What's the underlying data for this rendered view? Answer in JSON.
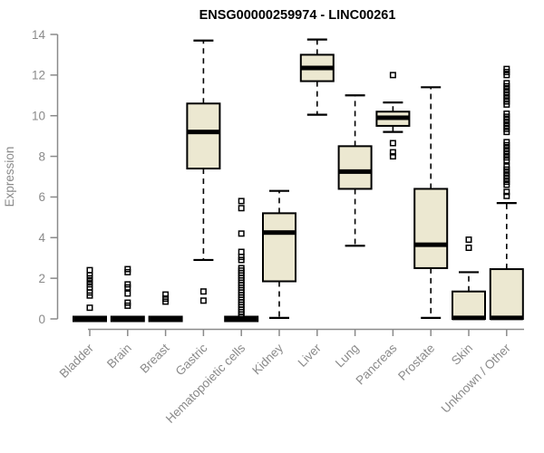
{
  "chart_data": {
    "type": "boxplot",
    "title": "ENSG00000259974 - LINC00261",
    "ylabel": "Expression",
    "xlabel": "",
    "ylim": [
      0,
      14
    ],
    "yticks": [
      0,
      2,
      4,
      6,
      8,
      10,
      12,
      14
    ],
    "grid": false,
    "legend": "none",
    "categories": [
      "Bladder",
      "Brain",
      "Breast",
      "Gastric",
      "Hematopoietic cells",
      "Kidney",
      "Liver",
      "Lung",
      "Pancreas",
      "Prostate",
      "Skin",
      "Unknown / Other"
    ],
    "series": [
      {
        "name": "Bladder",
        "whisker_low": 0,
        "q1": 0,
        "median": 0,
        "q3": 0,
        "whisker_high": 0,
        "outliers": [
          0.55,
          1.15,
          1.3,
          1.55,
          1.7,
          1.85,
          2.0,
          2.15,
          2.4
        ]
      },
      {
        "name": "Brain",
        "whisker_low": 0,
        "q1": 0,
        "median": 0,
        "q3": 0,
        "whisker_high": 0,
        "outliers": [
          0.65,
          0.8,
          1.25,
          1.55,
          1.7,
          2.3,
          2.45
        ]
      },
      {
        "name": "Breast",
        "whisker_low": 0,
        "q1": 0,
        "median": 0,
        "q3": 0,
        "whisker_high": 0,
        "outliers": [
          0.85,
          1.0,
          1.2
        ]
      },
      {
        "name": "Gastric",
        "whisker_low": 2.9,
        "q1": 7.4,
        "median": 9.2,
        "q3": 10.6,
        "whisker_high": 13.7,
        "outliers": [
          0.9,
          1.35
        ]
      },
      {
        "name": "Hematopoietic cells",
        "whisker_low": 0,
        "q1": 0,
        "median": 0,
        "q3": 0,
        "whisker_high": 0,
        "outliers": [
          0.1,
          0.22,
          0.34,
          0.46,
          0.58,
          0.7,
          0.82,
          0.94,
          1.06,
          1.18,
          1.3,
          1.42,
          1.54,
          1.66,
          1.78,
          1.9,
          2.02,
          2.14,
          2.26,
          2.38,
          2.5,
          2.9,
          3.05,
          3.3,
          4.2,
          5.45,
          5.8
        ]
      },
      {
        "name": "Kidney",
        "whisker_low": 0.05,
        "q1": 1.85,
        "median": 4.25,
        "q3": 5.2,
        "whisker_high": 6.3,
        "outliers": []
      },
      {
        "name": "Liver",
        "whisker_low": 10.05,
        "q1": 11.7,
        "median": 12.35,
        "q3": 13.0,
        "whisker_high": 13.75,
        "outliers": []
      },
      {
        "name": "Lung",
        "whisker_low": 3.6,
        "q1": 6.4,
        "median": 7.25,
        "q3": 8.5,
        "whisker_high": 11.0,
        "outliers": []
      },
      {
        "name": "Pancreas",
        "whisker_low": 9.2,
        "q1": 9.5,
        "median": 9.9,
        "q3": 10.2,
        "whisker_high": 10.65,
        "outliers": [
          8.0,
          8.2,
          8.65,
          12.0
        ]
      },
      {
        "name": "Prostate",
        "whisker_low": 0.05,
        "q1": 2.5,
        "median": 3.65,
        "q3": 6.4,
        "whisker_high": 11.4,
        "outliers": []
      },
      {
        "name": "Skin",
        "whisker_low": 0,
        "q1": 0,
        "median": 0.05,
        "q3": 1.35,
        "whisker_high": 2.3,
        "outliers": [
          3.5,
          3.9
        ]
      },
      {
        "name": "Unknown / Other",
        "whisker_low": 0,
        "q1": 0,
        "median": 0.05,
        "q3": 2.45,
        "whisker_high": 5.7,
        "outliers": [
          6.05,
          6.25,
          6.6,
          6.75,
          6.9,
          7.05,
          7.2,
          7.35,
          7.5,
          7.8,
          7.95,
          8.1,
          8.25,
          8.4,
          8.55,
          8.7,
          9.2,
          9.35,
          9.5,
          9.65,
          9.8,
          9.95,
          10.1,
          10.55,
          10.7,
          10.85,
          11.0,
          11.15,
          11.3,
          11.45,
          11.6,
          12.0,
          12.15,
          12.3
        ]
      }
    ],
    "colors": {
      "box_fill": "#ece8d1",
      "box_stroke": "#000000",
      "median": "#000000",
      "whisker": "#000000",
      "outlier": "#000000",
      "axis": "#8a8a8a",
      "tick_label": "#8a8a8a",
      "title": "#000000",
      "background": "#ffffff"
    }
  }
}
